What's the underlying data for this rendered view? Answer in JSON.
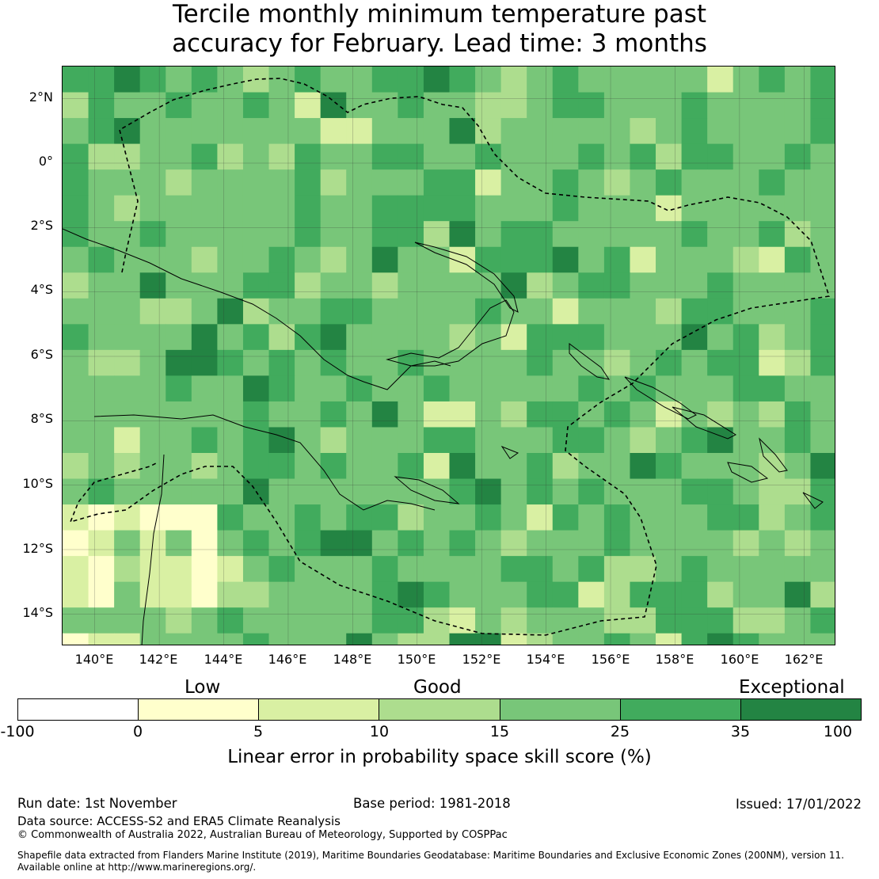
{
  "title": {
    "line1": "Tercile monthly minimum temperature past",
    "line2": "accuracy for February. Lead time: 3 months"
  },
  "map": {
    "lat_labels": [
      "2°N",
      "0°",
      "2°S",
      "4°S",
      "6°S",
      "8°S",
      "10°S",
      "12°S",
      "14°S"
    ],
    "lon_labels": [
      "140°E",
      "142°E",
      "144°E",
      "146°E",
      "148°E",
      "150°E",
      "152°E",
      "154°E",
      "156°E",
      "158°E",
      "160°E",
      "162°E"
    ],
    "lat_range": [
      -15,
      3
    ],
    "lon_range": [
      139,
      163
    ],
    "grid_resolution_deg": 0.8
  },
  "legend": {
    "categories": [
      "Low",
      "Good",
      "Exceptional"
    ],
    "ticks": [
      "-100",
      "0",
      "5",
      "10",
      "15",
      "25",
      "35",
      "100"
    ],
    "colors": [
      "#ffffff",
      "#ffffcc",
      "#d9f0a3",
      "#addd8e",
      "#78c679",
      "#41ab5d",
      "#238443"
    ],
    "title": "Linear error in probability space skill score (%)"
  },
  "footer": {
    "run_date": "Run date: 1st November",
    "base_period": "Base period: 1981-2018",
    "issued": "Issued: 17/01/2022",
    "data_source": "Data source: ACCESS-S2 and ERA5 Climate Reanalysis",
    "copyright": "© Commonwealth of Australia 2022, Australian Bureau of Meteorology, Supported by COSPPac",
    "shapefile_line1": "Shapefile data extracted from Flanders Marine Institute (2019), Maritime Boundaries Geodatabase: Maritime Boundaries and Exclusive Economic Zones (200NM), version 11.",
    "shapefile_line2": "Available online at http://www.marineregions.org/."
  }
}
